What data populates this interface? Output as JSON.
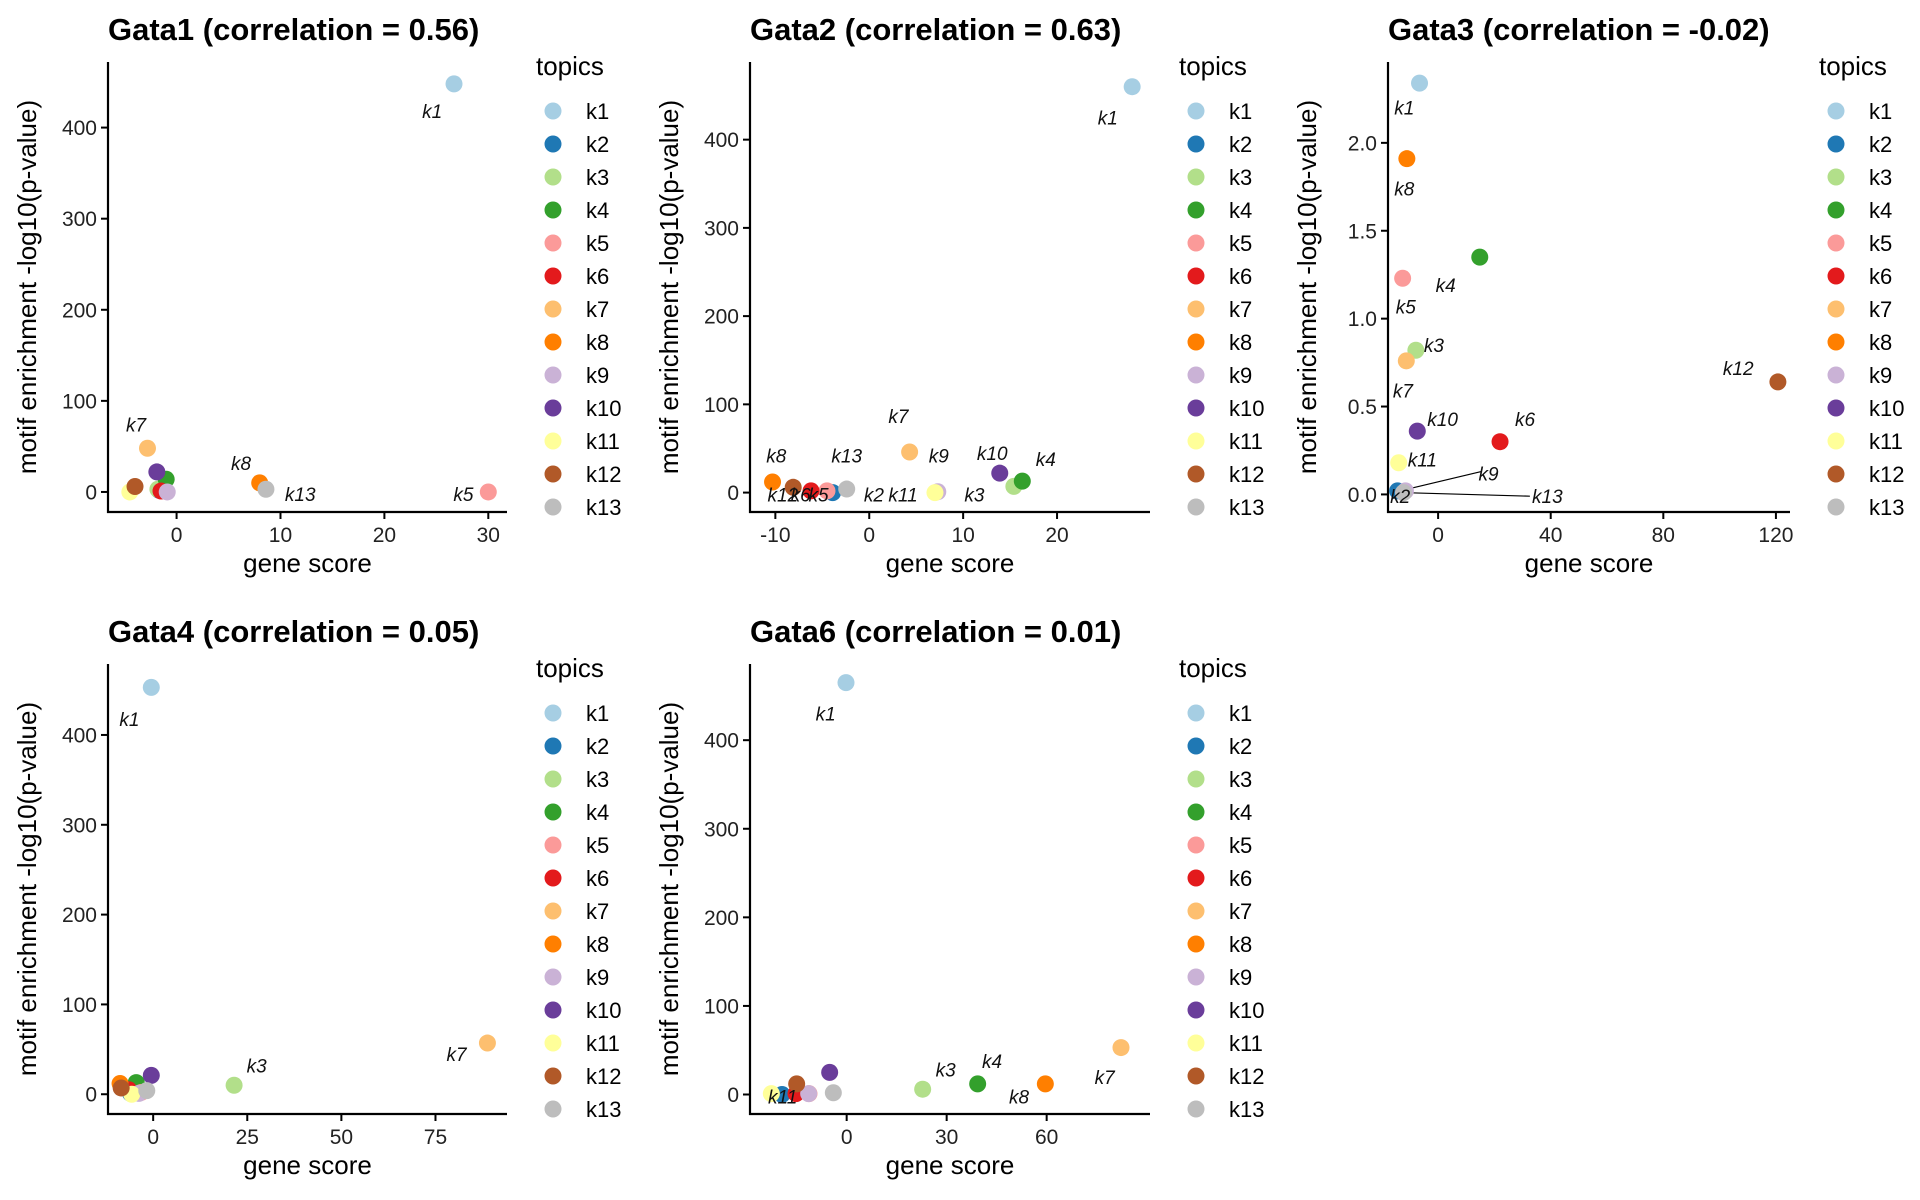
{
  "legend_title": "topics",
  "xlabel": "gene score",
  "ylabel": "motif enrichment -log10(p-value)",
  "colors": {
    "k1": "#a6cee3",
    "k2": "#1f78b4",
    "k3": "#b2df8a",
    "k4": "#33a02c",
    "k5": "#fb9a99",
    "k6": "#e31a1c",
    "k7": "#fdbf6f",
    "k8": "#ff7f00",
    "k9": "#cab2d6",
    "k10": "#6a3d9a",
    "k11": "#ffff99",
    "k12": "#b15928",
    "k13": "#bdbdbd"
  },
  "chart_data": [
    {
      "type": "scatter",
      "title": "Gata1 (correlation = 0.56)",
      "xlabel": "gene score",
      "ylabel": "motif enrichment -log10(p-value)",
      "xlim": [
        -6.6,
        31.8
      ],
      "ylim": [
        -22,
        472
      ],
      "xticks": [
        0,
        10,
        20,
        30
      ],
      "yticks": [
        0,
        100,
        200,
        300,
        400
      ],
      "legend_title": "topics",
      "points": [
        {
          "topic": "k1",
          "x": 26.7,
          "y": 448
        },
        {
          "topic": "k2",
          "x": -1.7,
          "y": 2
        },
        {
          "topic": "k3",
          "x": -1.8,
          "y": 3
        },
        {
          "topic": "k4",
          "x": -1.0,
          "y": 14
        },
        {
          "topic": "k5",
          "x": 30.0,
          "y": 0
        },
        {
          "topic": "k6",
          "x": -1.5,
          "y": 1
        },
        {
          "topic": "k7",
          "x": -2.8,
          "y": 48
        },
        {
          "topic": "k8",
          "x": 8.0,
          "y": 10
        },
        {
          "topic": "k9",
          "x": -0.9,
          "y": 0
        },
        {
          "topic": "k10",
          "x": -1.9,
          "y": 22
        },
        {
          "topic": "k11",
          "x": -4.5,
          "y": 0
        },
        {
          "topic": "k12",
          "x": -4.0,
          "y": 6
        },
        {
          "topic": "k13",
          "x": 8.6,
          "y": 3
        }
      ],
      "labels": [
        {
          "text": "k1",
          "x": 24.6,
          "y": 418
        },
        {
          "text": "k7",
          "x": -3.9,
          "y": 74
        },
        {
          "text": "k8",
          "x": 6.2,
          "y": 32
        },
        {
          "text": "k13",
          "x": 11.9,
          "y": -2
        },
        {
          "text": "k5",
          "x": 27.6,
          "y": -2
        }
      ]
    },
    {
      "type": "scatter",
      "title": "Gata2 (correlation = 0.63)",
      "xlabel": "gene score",
      "ylabel": "motif enrichment -log10(p-value)",
      "xlim": [
        -12.7,
        29.9
      ],
      "ylim": [
        -22,
        488
      ],
      "xticks": [
        -10,
        0,
        10,
        20
      ],
      "yticks": [
        0,
        100,
        200,
        300,
        400
      ],
      "legend_title": "topics",
      "points": [
        {
          "topic": "k1",
          "x": 28.0,
          "y": 460
        },
        {
          "topic": "k2",
          "x": -3.9,
          "y": 0
        },
        {
          "topic": "k3",
          "x": 15.4,
          "y": 7
        },
        {
          "topic": "k4",
          "x": 16.3,
          "y": 13
        },
        {
          "topic": "k5",
          "x": -4.5,
          "y": 2
        },
        {
          "topic": "k6",
          "x": -6.2,
          "y": 2
        },
        {
          "topic": "k7",
          "x": 4.3,
          "y": 46
        },
        {
          "topic": "k8",
          "x": -10.3,
          "y": 12
        },
        {
          "topic": "k9",
          "x": 7.3,
          "y": 1
        },
        {
          "topic": "k10",
          "x": 13.9,
          "y": 22
        },
        {
          "topic": "k11",
          "x": 7.0,
          "y": 0
        },
        {
          "topic": "k12",
          "x": -8.1,
          "y": 6
        },
        {
          "topic": "k13",
          "x": -2.4,
          "y": 4
        }
      ],
      "labels": [
        {
          "text": "k1",
          "x": 25.4,
          "y": 425
        },
        {
          "text": "k7",
          "x": 3.1,
          "y": 87
        },
        {
          "text": "k8",
          "x": -9.9,
          "y": 42
        },
        {
          "text": "k13",
          "x": -2.4,
          "y": 42
        },
        {
          "text": "k9",
          "x": 7.4,
          "y": 42
        },
        {
          "text": "k10",
          "x": 13.1,
          "y": 45
        },
        {
          "text": "k4",
          "x": 18.8,
          "y": 38
        },
        {
          "text": "k12",
          "x": -9.2,
          "y": -2
        },
        {
          "text": "k6",
          "x": -7.3,
          "y": -2
        },
        {
          "text": "k5",
          "x": -5.4,
          "y": -2
        },
        {
          "text": "k2",
          "x": 0.5,
          "y": -2
        },
        {
          "text": "k11",
          "x": 3.6,
          "y": -2
        },
        {
          "text": "k3",
          "x": 11.2,
          "y": -2
        }
      ]
    },
    {
      "type": "scatter",
      "title": "Gata3 (correlation = -0.02)",
      "xlabel": "gene score",
      "ylabel": "motif enrichment -log10(p-value)",
      "xlim": [
        -17.8,
        125
      ],
      "ylim": [
        -0.1,
        2.46
      ],
      "xticks": [
        0,
        40,
        80,
        120
      ],
      "yticks": [
        0.0,
        0.5,
        1.0,
        1.5,
        2.0
      ],
      "legend_title": "topics",
      "points": [
        {
          "topic": "k1",
          "x": -6.6,
          "y": 2.34
        },
        {
          "topic": "k2",
          "x": -14.4,
          "y": 0.02
        },
        {
          "topic": "k3",
          "x": -7.9,
          "y": 0.82
        },
        {
          "topic": "k4",
          "x": 14.8,
          "y": 1.35
        },
        {
          "topic": "k5",
          "x": -12.6,
          "y": 1.23
        },
        {
          "topic": "k6",
          "x": 22.0,
          "y": 0.3
        },
        {
          "topic": "k7",
          "x": -11.3,
          "y": 0.76
        },
        {
          "topic": "k8",
          "x": -11.1,
          "y": 1.91
        },
        {
          "topic": "k9",
          "x": -11.6,
          "y": 0.02
        },
        {
          "topic": "k10",
          "x": -7.4,
          "y": 0.36
        },
        {
          "topic": "k11",
          "x": -14.0,
          "y": 0.18
        },
        {
          "topic": "k12",
          "x": 120.7,
          "y": 0.64
        },
        {
          "topic": "k13",
          "x": -12.3,
          "y": 0.01
        }
      ],
      "labels": [
        {
          "text": "k1",
          "x": -12.0,
          "y": 2.2
        },
        {
          "text": "k8",
          "x": -12.0,
          "y": 1.74
        },
        {
          "text": "k4",
          "x": 2.7,
          "y": 1.19
        },
        {
          "text": "k5",
          "x": -11.5,
          "y": 1.07
        },
        {
          "text": "k3",
          "x": -1.5,
          "y": 0.85
        },
        {
          "text": "k7",
          "x": -12.5,
          "y": 0.59
        },
        {
          "text": "k10",
          "x": 1.6,
          "y": 0.43
        },
        {
          "text": "k6",
          "x": 30.9,
          "y": 0.43
        },
        {
          "text": "k11",
          "x": -5.6,
          "y": 0.2
        },
        {
          "text": "k9",
          "x": 17.9,
          "y": 0.12
        },
        {
          "text": "k2",
          "x": -13.5,
          "y": -0.01
        },
        {
          "text": "k13",
          "x": 38.8,
          "y": -0.01
        },
        {
          "text": "k12",
          "x": 106.6,
          "y": 0.72
        }
      ],
      "leaders": [
        {
          "x1": -11.0,
          "y1": 0.03,
          "x2": 15.3,
          "y2": 0.13
        },
        {
          "x1": -11.5,
          "y1": 0.01,
          "x2": 32.6,
          "y2": -0.01
        }
      ]
    },
    {
      "type": "scatter",
      "title": "Gata4 (correlation = 0.05)",
      "xlabel": "gene score",
      "ylabel": "motif enrichment -log10(p-value)",
      "xlim": [
        -12.0,
        94
      ],
      "ylim": [
        -22,
        479
      ],
      "xticks": [
        0,
        25,
        50,
        75
      ],
      "yticks": [
        0,
        100,
        200,
        300,
        400
      ],
      "legend_title": "topics",
      "points": [
        {
          "topic": "k1",
          "x": -0.5,
          "y": 453
        },
        {
          "topic": "k2",
          "x": -6.0,
          "y": 1
        },
        {
          "topic": "k3",
          "x": 21.5,
          "y": 10
        },
        {
          "topic": "k4",
          "x": -4.5,
          "y": 13
        },
        {
          "topic": "k5",
          "x": -3.2,
          "y": 2
        },
        {
          "topic": "k6",
          "x": -6.5,
          "y": 5
        },
        {
          "topic": "k7",
          "x": 88.8,
          "y": 57
        },
        {
          "topic": "k8",
          "x": -8.8,
          "y": 12
        },
        {
          "topic": "k9",
          "x": -3.8,
          "y": 1
        },
        {
          "topic": "k10",
          "x": -0.5,
          "y": 21
        },
        {
          "topic": "k11",
          "x": -5.7,
          "y": 0
        },
        {
          "topic": "k12",
          "x": -8.5,
          "y": 7
        },
        {
          "topic": "k13",
          "x": -1.7,
          "y": 4
        }
      ],
      "labels": [
        {
          "text": "k1",
          "x": -6.3,
          "y": 418
        },
        {
          "text": "k3",
          "x": 27.5,
          "y": 32
        },
        {
          "text": "k7",
          "x": 80.6,
          "y": 45
        }
      ]
    },
    {
      "type": "scatter",
      "title": "Gata6 (correlation = 0.01)",
      "xlabel": "gene score",
      "ylabel": "motif enrichment -log10(p-value)",
      "xlim": [
        -29.0,
        91
      ],
      "ylim": [
        -22,
        486
      ],
      "xticks": [
        0,
        30,
        60
      ],
      "yticks": [
        0,
        100,
        200,
        300,
        400
      ],
      "legend_title": "topics",
      "points": [
        {
          "topic": "k1",
          "x": -0.2,
          "y": 465
        },
        {
          "topic": "k2",
          "x": -19.4,
          "y": 0
        },
        {
          "topic": "k3",
          "x": 22.8,
          "y": 6
        },
        {
          "topic": "k4",
          "x": 39.3,
          "y": 12
        },
        {
          "topic": "k5",
          "x": -11.3,
          "y": 1
        },
        {
          "topic": "k6",
          "x": -15.2,
          "y": 1
        },
        {
          "topic": "k7",
          "x": 82.3,
          "y": 53
        },
        {
          "topic": "k8",
          "x": 59.6,
          "y": 12
        },
        {
          "topic": "k9",
          "x": -11.4,
          "y": 1
        },
        {
          "topic": "k10",
          "x": -5.1,
          "y": 25
        },
        {
          "topic": "k11",
          "x": -22.6,
          "y": 1
        },
        {
          "topic": "k12",
          "x": -15.0,
          "y": 12
        },
        {
          "topic": "k13",
          "x": -4.0,
          "y": 2
        }
      ],
      "labels": [
        {
          "text": "k1",
          "x": -6.3,
          "y": 430
        },
        {
          "text": "k3",
          "x": 29.7,
          "y": 28
        },
        {
          "text": "k4",
          "x": 43.6,
          "y": 38
        },
        {
          "text": "k8",
          "x": 51.7,
          "y": -2
        },
        {
          "text": "k7",
          "x": 77.4,
          "y": 20
        },
        {
          "text": "k11",
          "x": -19.2,
          "y": -2
        }
      ]
    }
  ]
}
